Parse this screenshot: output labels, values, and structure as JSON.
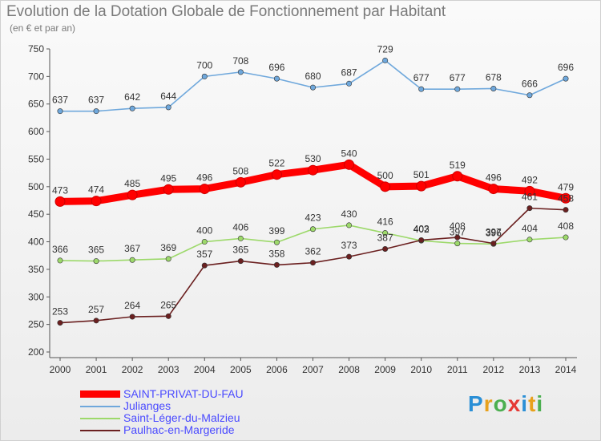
{
  "title": "Evolution de la Dotation Globale de Fonctionnement par Habitant",
  "subtitle": "(en € et par an)",
  "chart_data": {
    "type": "line",
    "x": [
      "2000",
      "2001",
      "2002",
      "2003",
      "2004",
      "2005",
      "2006",
      "2007",
      "2008",
      "2009",
      "2010",
      "2011",
      "2012",
      "2013",
      "2014"
    ],
    "ylim": [
      200,
      750
    ],
    "yticks": [
      "200",
      "250",
      "300",
      "350",
      "400",
      "450",
      "500",
      "550",
      "600",
      "650",
      "700",
      "750"
    ],
    "series": [
      {
        "name": "SAINT-PRIVAT-DU-FAU",
        "color": "#ff0000",
        "values": [
          473,
          474,
          485,
          495,
          496,
          508,
          522,
          530,
          540,
          500,
          501,
          519,
          496,
          492,
          479
        ],
        "labels": [
          "473",
          "474",
          "485",
          "495",
          "496",
          "508",
          "522",
          "530",
          "540",
          "500",
          "501",
          "519",
          "496",
          "492",
          "479"
        ]
      },
      {
        "name": "Julianges",
        "color": "#6fa8dc",
        "values": [
          637,
          637,
          642,
          644,
          700,
          708,
          696,
          680,
          687,
          729,
          677,
          677,
          678,
          666,
          696
        ],
        "labels": [
          "637",
          "637",
          "642",
          "644",
          "700",
          "708",
          "696",
          "680",
          "687",
          "729",
          "677",
          "677",
          "678",
          "666",
          "696"
        ]
      },
      {
        "name": "Saint-Léger-du-Malzieu",
        "color": "#9dd96b",
        "values": [
          366,
          365,
          367,
          369,
          400,
          406,
          399,
          423,
          430,
          416,
          402,
          397,
          396,
          404,
          408
        ],
        "labels": [
          "366",
          "365",
          "367",
          "369",
          "400",
          "406",
          "399",
          "423",
          "430",
          "416",
          "402",
          "397",
          "396",
          "404",
          "408"
        ]
      },
      {
        "name": "Paulhac-en-Margeride",
        "color": "#6b2020",
        "values": [
          253,
          257,
          264,
          265,
          357,
          365,
          358,
          362,
          373,
          387,
          403,
          408,
          397,
          461,
          458
        ],
        "labels": [
          "253",
          "257",
          "264",
          "265",
          "357",
          "365",
          "358",
          "362",
          "373",
          "387",
          "403",
          "408",
          "397",
          "461",
          "458"
        ]
      }
    ]
  },
  "logo": {
    "text": "Proxiti"
  }
}
